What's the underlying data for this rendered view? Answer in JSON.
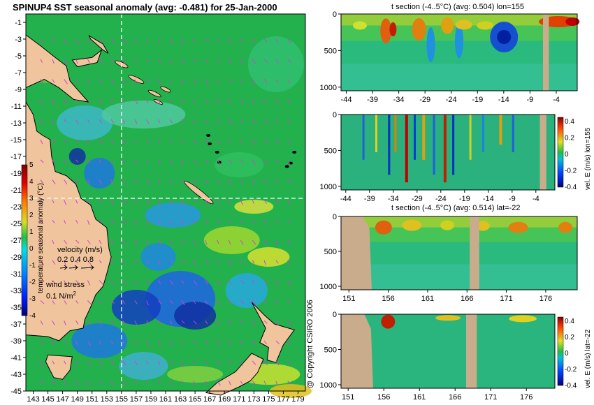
{
  "chart_data": [
    {
      "type": "heatmap",
      "title": "SPINUP4 SST seasonal anomaly (avg: -0.481) for 25-Jan-2000",
      "y_ticks": [
        "-1",
        "-3",
        "-5",
        "-7",
        "-9",
        "-11",
        "-13",
        "-15",
        "-17",
        "-19",
        "-21",
        "-23",
        "-25",
        "-27",
        "-29",
        "-31",
        "-33",
        "-35",
        "-37",
        "-39",
        "-41",
        "-43",
        "-45"
      ],
      "x_ticks": [
        "143",
        "145",
        "147",
        "149",
        "151",
        "153",
        "155",
        "157",
        "159",
        "161",
        "163",
        "165",
        "167",
        "169",
        "171",
        "173",
        "175",
        "177",
        "179"
      ],
      "xlim": [
        142,
        180
      ],
      "ylim": [
        -45,
        0
      ],
      "crosshair": {
        "lon": 155,
        "lat": -22
      },
      "colorbar": {
        "label": "temperature seasonal anomaly (°C)",
        "ticks": [
          "5",
          "4",
          "3",
          "2",
          "1",
          "0",
          "-1",
          "-2",
          "-3",
          "-4"
        ],
        "range": [
          -4,
          5
        ]
      },
      "legend": {
        "velocity_label": "velocity (m/s)",
        "velocity_values": "0.2 0.4 0.8",
        "wind_label": "wind stress",
        "wind_value": "0.1 N/m",
        "wind_sup": "2"
      }
    },
    {
      "type": "heatmap",
      "title": "t section (-4..5°C) (avg: 0.504) lon=155",
      "x_ticks": [
        "-44",
        "-39",
        "-34",
        "-29",
        "-24",
        "-19",
        "-14",
        "-9",
        "-4"
      ],
      "y_ticks": [
        "0",
        "500",
        "1000"
      ],
      "xlim": [
        -45,
        0
      ],
      "ylim": [
        1050,
        0
      ]
    },
    {
      "type": "heatmap",
      "title": "",
      "x_ticks": [
        "-44",
        "-39",
        "-34",
        "-29",
        "-24",
        "-19",
        "-14",
        "-9",
        "-4"
      ],
      "y_ticks": [
        "0",
        "500",
        "1000"
      ],
      "colorbar": {
        "label": "vel. E (m/s) lon=155",
        "ticks": [
          "0.4",
          "0.2",
          "0",
          "-0.2",
          "-0.4"
        ],
        "range": [
          -0.4,
          0.45
        ]
      }
    },
    {
      "type": "heatmap",
      "title": "t section (-4..5°C) (avg: 0.514) lat=-22",
      "x_ticks": [
        "151",
        "156",
        "161",
        "166",
        "171",
        "176"
      ],
      "y_ticks": [
        "0",
        "500",
        "1000"
      ],
      "xlim": [
        150,
        180
      ],
      "ylim": [
        1050,
        0
      ]
    },
    {
      "type": "heatmap",
      "title": "",
      "x_ticks": [
        "151",
        "156",
        "161",
        "166",
        "171",
        "176"
      ],
      "y_ticks": [
        "0",
        "500",
        "1000"
      ],
      "colorbar": {
        "label": "vel. E (m/s) lat=-22",
        "ticks": [
          "0.4",
          "0.2",
          "0",
          "-0.2",
          "-0.4"
        ],
        "range": [
          -0.4,
          0.45
        ]
      }
    }
  ],
  "copyright": "@ Copyright CSIRO 2006",
  "colors": {
    "ocean_base": "#22b14c",
    "land": "#f0c49c",
    "section_land": "#c8ac8c",
    "cold": "#1e64e6",
    "warm": "#e6a014",
    "crosshair": "#ffffff",
    "arrows": "#d040d0"
  }
}
